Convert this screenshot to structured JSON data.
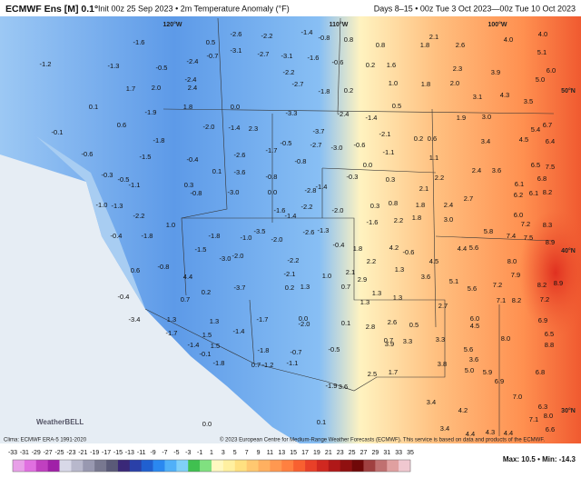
{
  "header": {
    "model": "ECMWF Ens [M] 0.1°",
    "init": "Init 00z 25 Sep 2023 • 2m Temperature Anomaly (°F)",
    "days": "Days 8–15 • 00z Tue 3 Oct 2023—00z Tue 10 Oct 2023"
  },
  "map": {
    "geo_labels": [
      "120°W",
      "110°W",
      "100°W",
      "50°N",
      "40°N",
      "30°N"
    ],
    "labels": [
      "-1.6",
      "0.5",
      "-2.6",
      "-2.2",
      "-1.4",
      "-0.8",
      "0.8",
      "0.8",
      "1.8",
      "2.1",
      "2.6",
      "4.0",
      "4.0",
      "-1.3",
      "-1.2",
      "-0.5",
      "-2.4",
      "-0.7",
      "-3.1",
      "-2.7",
      "-3.1",
      "-1.6",
      "-0.6",
      "0.2",
      "1.6",
      "2.3",
      "3.9",
      "5.1",
      "1.7",
      "2.0",
      "-2.4",
      "2.4",
      "-2.2",
      "-2.7",
      "-1.8",
      "0.2",
      "1.0",
      "1.8",
      "2.0",
      "3.1",
      "4.3",
      "3.5",
      "5.0",
      "6.0",
      "0.1",
      "-1.9",
      "1.8",
      "0.0",
      "-3.3",
      "-2.4",
      "-1.4",
      "0.5",
      "1.9",
      "3.0",
      "6.7",
      "-0.1",
      "0.6",
      "-1.8",
      "-2.0",
      "-1.4",
      "2.3",
      "-3.7",
      "-2.1",
      "0.2",
      "0.6",
      "3.4",
      "4.5",
      "5.4",
      "6.4",
      "-0.6",
      "-1.5",
      "-0.4",
      "-2.6",
      "-1.7",
      "-0.5",
      "-2.7",
      "-3.0",
      "-0.6",
      "-1.1",
      "1.1",
      "2.4",
      "3.6",
      "6.5",
      "7.5",
      "-0.3",
      "-0.5",
      "0.1",
      "-3.6",
      "-0.8",
      "-0.8",
      "0.0",
      "0.3",
      "2.2",
      "6.1",
      "6.8",
      "-1.1",
      "0.3",
      "-0.8",
      "-3.0",
      "0.0",
      "-2.8",
      "-1.4",
      "-0.3",
      "2.1",
      "2.7",
      "6.2",
      "6.1",
      "8.2",
      "-1.0",
      "-1.3",
      "-2.2",
      "-2.2",
      "-1.6",
      "-1.4",
      "-2.0",
      "0.3",
      "0.8",
      "1.8",
      "2.4",
      "1.8",
      "-1.6",
      "2.2",
      "3.0",
      "6.0",
      "7.2",
      "8.3",
      "1.0",
      "-0.4",
      "-1.8",
      "-1.8",
      "-3.5",
      "-2.0",
      "-2.6",
      "-1.3",
      "-0.4",
      "1.8",
      "4.2",
      "-0.6",
      "5.8",
      "7.4",
      "7.5",
      "8.9",
      "-1.5",
      "-1.0",
      "-2.0",
      "-3.0",
      "-2.2",
      "2.2",
      "4.4",
      "5.6",
      "4.5",
      "8.0",
      "-0.8",
      "0.6",
      "4.4",
      "-2.1",
      "1.0",
      "2.1",
      "2.9",
      "1.3",
      "3.6",
      "5.1",
      "5.6",
      "7.2",
      "7.9",
      "8.2",
      "8.9",
      "-0.4",
      "0.7",
      "0.2",
      "-3.7",
      "0.2",
      "1.3",
      "0.7",
      "1.3",
      "1.3",
      "1.3",
      "2.7",
      "7.1",
      "8.2",
      "7.2",
      "-3.4",
      "1.3",
      "1.3",
      "-1.7",
      "0.0",
      "-2.0",
      "0.1",
      "2.8",
      "2.6",
      "0.5",
      "6.0",
      "4.5",
      "6.9",
      "-1.7",
      "1.5",
      "-1.4",
      "0.7",
      "3.3",
      "3.3",
      "5.6",
      "8.0",
      "6.5",
      "8.8",
      "-1.4",
      "1.5",
      "-1.8",
      "-0.7",
      "-1.1",
      "-0.5",
      "3.9",
      "3.8",
      "3.6",
      "5.0",
      "5.9",
      "6.9",
      "6.8",
      "-0.1",
      "-1.8",
      "0.7",
      "-1.2",
      "2.5",
      "1.7",
      "-1.9",
      "3.6",
      "3.4",
      "4.2",
      "7.0",
      "6.3",
      "8.0",
      "0.1",
      "0.0",
      "3.4",
      "4.4",
      "4.3",
      "4.4",
      "7.1",
      "6.6"
    ]
  },
  "logo": "WeatherBELL",
  "footer": {
    "clima": "Clima: ECMWF ERA-5 1991-2020",
    "copyright": "© 2023 European Centre for Medium-Range Weather Forecasts (ECMWF). This service is based on data and products of the ECMWF.",
    "maxmin": "Max: 10.5 • Min: -14.3"
  },
  "colorbar": {
    "ticks": [
      -33,
      -31,
      -29,
      -27,
      -25,
      -23,
      -21,
      -19,
      -17,
      -15,
      -13,
      -11,
      -9,
      -7,
      -5,
      -3,
      -1,
      1,
      3,
      5,
      7,
      9,
      11,
      13,
      15,
      17,
      19,
      21,
      23,
      25,
      27,
      29,
      31,
      33,
      35
    ],
    "colors": [
      "#e8a0e8",
      "#e070e0",
      "#c040c0",
      "#a020a8",
      "#d8d8e8",
      "#b8b8cc",
      "#9898b0",
      "#787890",
      "#5a5a78",
      "#3a2878",
      "#2a40a8",
      "#2060d0",
      "#2a88f0",
      "#50b0f8",
      "#80d0f8",
      "#40c050",
      "#80e080",
      "#fff8c0",
      "#fff0a0",
      "#ffe080",
      "#ffc870",
      "#ffb060",
      "#ff9850",
      "#ff8040",
      "#f86030",
      "#e84028",
      "#d02820",
      "#b01818",
      "#901010",
      "#700808",
      "#a04040",
      "#c07070",
      "#e0a0a0",
      "#f0c8d0"
    ]
  }
}
